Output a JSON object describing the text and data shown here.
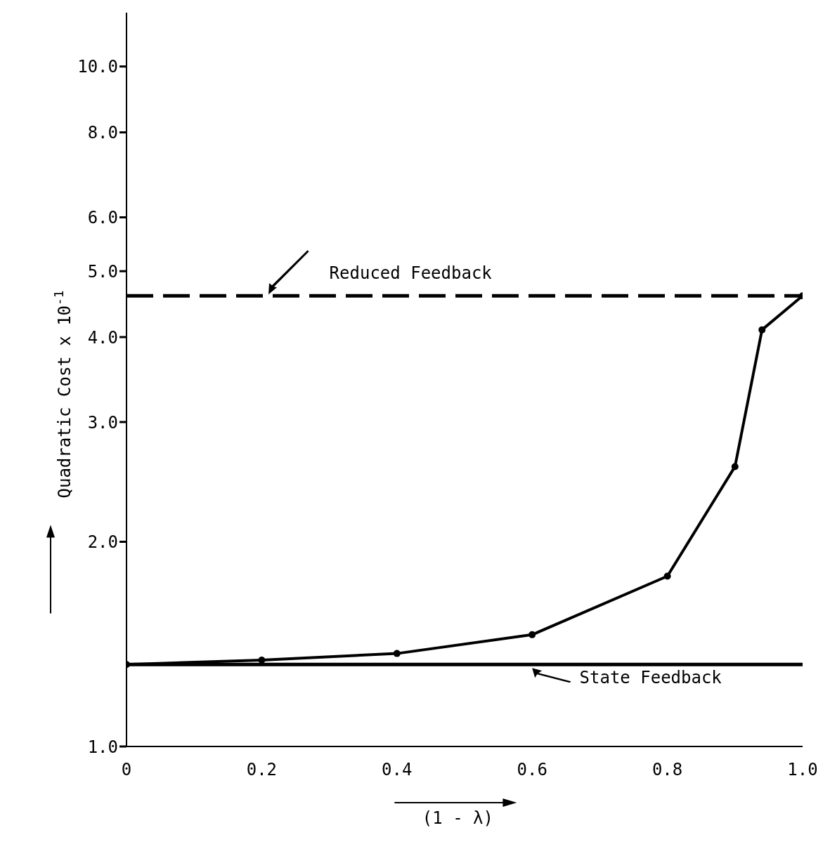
{
  "chart_data": {
    "type": "line",
    "xlabel": "(1 - λ)",
    "ylabel": "Quadratic Cost x 10$^{-1}$",
    "x": [
      0,
      0.2,
      0.4,
      0.6,
      0.8,
      0.9,
      0.94,
      1.0
    ],
    "series": [
      {
        "color": "#000000",
        "values": [
          1.32,
          1.34,
          1.37,
          1.46,
          1.78,
          2.58,
          4.1,
          4.6
        ]
      }
    ],
    "marker": "circle",
    "line_style": "solid",
    "log": "y",
    "xlim": [
      0,
      1.0
    ],
    "xticks": [
      0,
      0.2,
      0.4,
      0.6,
      0.8,
      {
        "value": 1,
        "label": "1.0"
      }
    ],
    "ylim": [
      1,
      12
    ],
    "yticks": [
      {
        "value": 1,
        "label": "1.0"
      },
      {
        "value": 2,
        "label": "2.0"
      },
      {
        "value": 3,
        "label": "3.0"
      },
      {
        "value": 4,
        "label": "4.0"
      },
      {
        "value": 5,
        "label": "5.0"
      },
      {
        "value": 6,
        "label": "6.0"
      },
      {
        "value": 8,
        "label": "8.0"
      },
      {
        "value": 10,
        "label": "10.0"
      }
    ],
    "ref_lines": [
      {
        "axis": "y",
        "value": 4.6,
        "label": "Reduced Feedback",
        "line_style": "dashed",
        "color": "#000000"
      },
      {
        "axis": "y",
        "value": 1.32,
        "label": "State Feedback",
        "line_style": "solid",
        "color": "#000000"
      }
    ],
    "grid": false,
    "legend": false
  }
}
